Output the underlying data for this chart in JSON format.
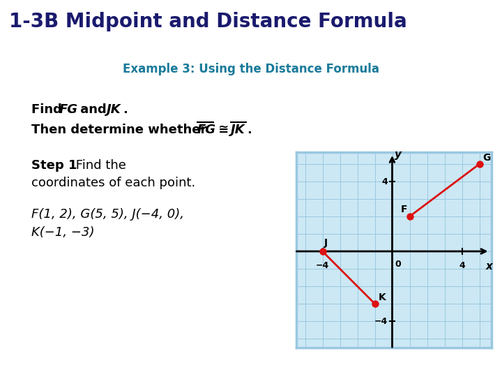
{
  "title": "1-3B Midpoint and Distance Formula",
  "title_bg": "#F5C200",
  "title_fg": "#1a1a6e",
  "subtitle": "Example 3: Using the Distance Formula",
  "subtitle_fg": "#1a7a9a",
  "bg_color": "#ffffff",
  "F": [
    1,
    2
  ],
  "G": [
    5,
    5
  ],
  "J": [
    -4,
    0
  ],
  "K": [
    -1,
    -3
  ],
  "point_color": "#dd1111",
  "line_color": "#dd1111",
  "grid_bg": "#cce8f4",
  "grid_line_color": "#9ac8e0",
  "grid_border_color": "#9ac8e0"
}
